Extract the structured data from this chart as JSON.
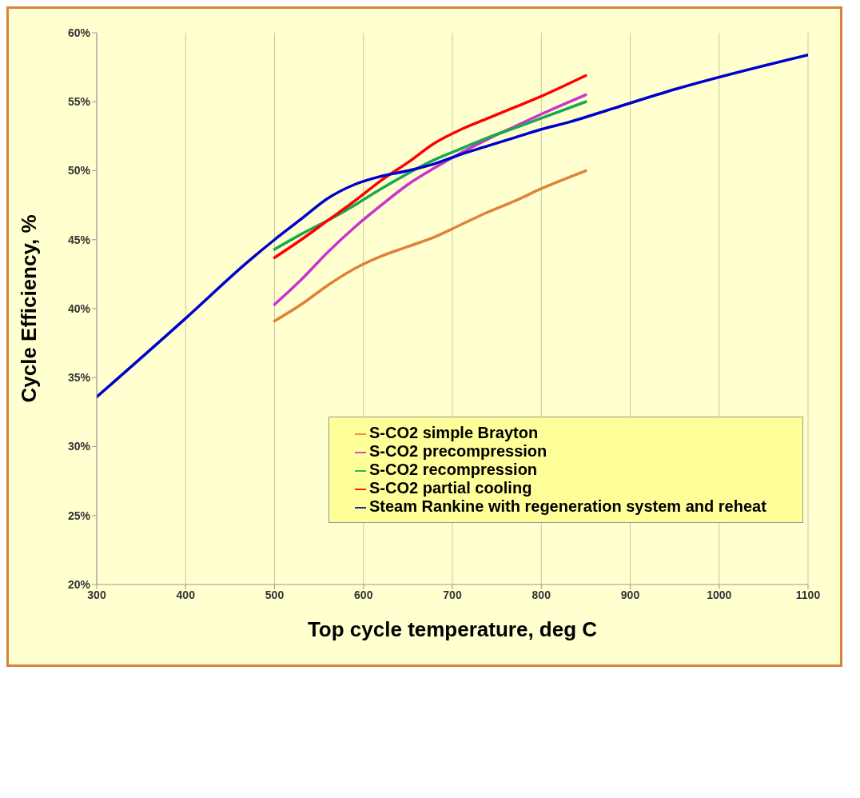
{
  "chart_data": {
    "type": "line",
    "xlabel": "Top cycle temperature, deg C",
    "ylabel": "Cycle Efficiency, %",
    "xlim": [
      300,
      1100
    ],
    "xticks": [
      300,
      400,
      500,
      600,
      700,
      800,
      900,
      1000,
      1100
    ],
    "ylim": [
      20,
      60
    ],
    "yticks": [
      {
        "value": 20,
        "label": "20%"
      },
      {
        "value": 25,
        "label": "25%"
      },
      {
        "value": 30,
        "label": "30%"
      },
      {
        "value": 35,
        "label": "35%"
      },
      {
        "value": 40,
        "label": "40%"
      },
      {
        "value": 45,
        "label": "45%"
      },
      {
        "value": 50,
        "label": "50%"
      },
      {
        "value": 55,
        "label": "55%"
      },
      {
        "value": 60,
        "label": "60%"
      }
    ],
    "grid": true,
    "legend": "bottom right",
    "marker": "none",
    "line_style": "solid",
    "series": [
      {
        "name": "S-CO2 simple Brayton",
        "color": "#e0823a",
        "x": [
          500,
          530,
          560,
          590,
          620,
          650,
          680,
          710,
          740,
          770,
          800,
          850
        ],
        "values": [
          39.1,
          40.3,
          41.7,
          42.9,
          43.8,
          44.5,
          45.2,
          46.1,
          47.0,
          47.8,
          48.7,
          50.0
        ]
      },
      {
        "name": "S-CO2 precompression",
        "color": "#cc33cc",
        "x": [
          500,
          530,
          560,
          590,
          620,
          650,
          680,
          710,
          740,
          770,
          800,
          850
        ],
        "values": [
          40.3,
          42.1,
          44.1,
          45.9,
          47.5,
          49.0,
          50.2,
          51.3,
          52.3,
          53.2,
          54.1,
          55.5
        ]
      },
      {
        "name": "S-CO2 recompression",
        "color": "#1aa84f",
        "x": [
          500,
          530,
          560,
          590,
          620,
          650,
          680,
          710,
          740,
          770,
          800,
          850
        ],
        "values": [
          44.3,
          45.4,
          46.4,
          47.5,
          48.7,
          49.8,
          50.8,
          51.6,
          52.4,
          53.1,
          53.8,
          55.0
        ]
      },
      {
        "name": "S-CO2 partial cooling",
        "color": "#ff0000",
        "x": [
          500,
          530,
          560,
          590,
          620,
          650,
          680,
          710,
          740,
          770,
          800,
          850
        ],
        "values": [
          43.7,
          45.0,
          46.4,
          47.8,
          49.3,
          50.6,
          52.0,
          53.0,
          53.8,
          54.6,
          55.4,
          56.9
        ]
      },
      {
        "name": "Steam Rankine with regeneration system and reheat",
        "color": "#0000cc",
        "x": [
          300,
          400,
          470,
          500,
          530,
          560,
          590,
          620,
          650,
          680,
          710,
          740,
          770,
          800,
          830,
          880,
          950,
          1100
        ],
        "values": [
          33.6,
          39.3,
          43.4,
          45.0,
          46.5,
          48.0,
          49.0,
          49.6,
          50.0,
          50.5,
          51.2,
          51.8,
          52.4,
          53.0,
          53.5,
          54.5,
          55.9,
          58.4
        ]
      }
    ]
  }
}
